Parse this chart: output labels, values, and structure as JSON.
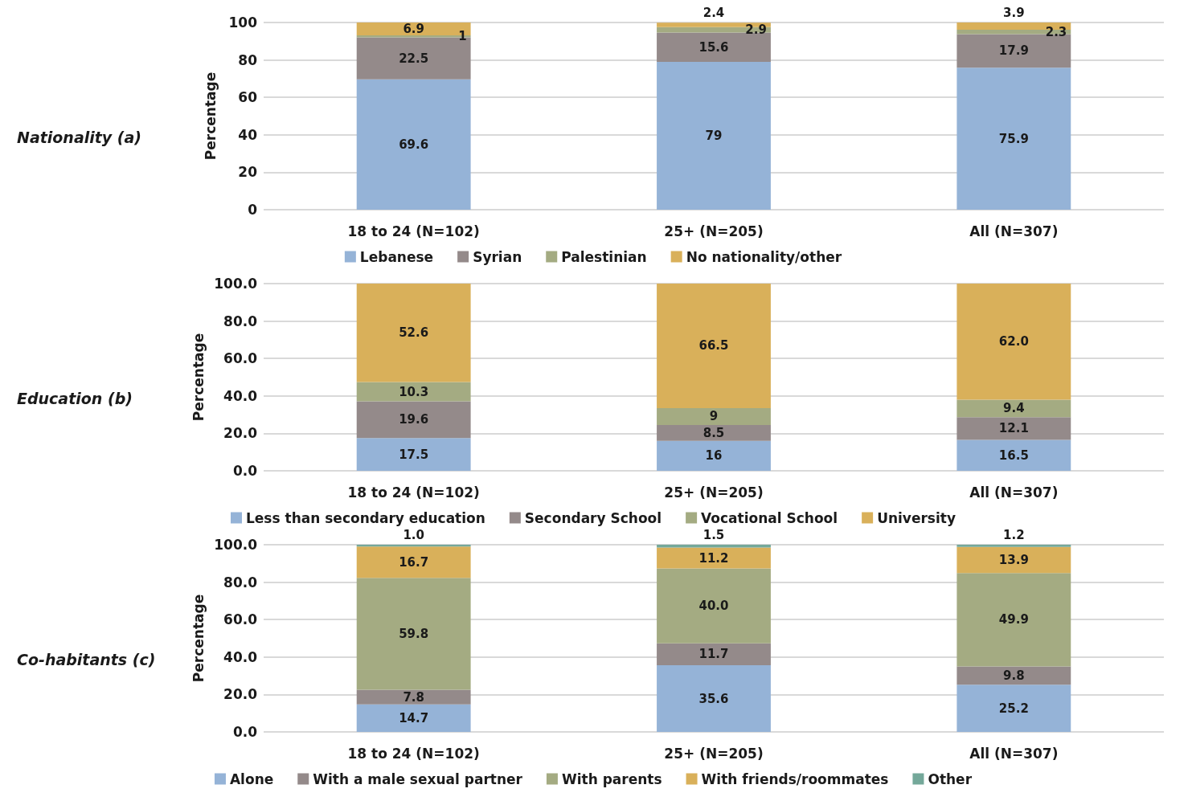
{
  "chart_data": [
    {
      "type": "bar",
      "title": "Nationality (a)",
      "ylabel": "Percentage",
      "categories": [
        "18 to 24 (N=102)",
        "25+ (N=205)",
        "All (N=307)"
      ],
      "stacked": true,
      "ylim": [
        0,
        100
      ],
      "yticks": [
        0,
        20,
        40,
        60,
        80,
        100
      ],
      "grid": "y",
      "legend": "bottom",
      "series": [
        {
          "name": "Lebanese",
          "color": "#95b3d7",
          "values": [
            69.6,
            79,
            75.9
          ],
          "value_labels": [
            "69.6",
            "79",
            "75.9"
          ]
        },
        {
          "name": "Syrian",
          "color": "#948a8a",
          "values": [
            22.5,
            15.6,
            17.9
          ],
          "value_labels": [
            "22.5",
            "15.6",
            "17.9"
          ]
        },
        {
          "name": "Palestinian",
          "color": "#a4ab82",
          "values": [
            1,
            2.9,
            2.3
          ],
          "value_labels": [
            "1",
            "2.9",
            "2.3"
          ]
        },
        {
          "name": "No nationality/other",
          "color": "#d9b05a",
          "values": [
            6.9,
            2.4,
            3.9
          ],
          "value_labels": [
            "6.9",
            "2.4",
            "3.9"
          ]
        }
      ]
    },
    {
      "type": "bar",
      "title": "Education (b)",
      "ylabel": "Percentage",
      "categories": [
        "18 to 24 (N=102)",
        "25+ (N=205)",
        "All (N=307)"
      ],
      "stacked": true,
      "ylim": [
        0,
        100
      ],
      "yticks": [
        {
          "value": 0,
          "label": "0.0"
        },
        {
          "value": 20,
          "label": "20.0"
        },
        {
          "value": 40,
          "label": "40.0"
        },
        {
          "value": 60,
          "label": "60.0"
        },
        {
          "value": 80,
          "label": "80.0"
        },
        {
          "value": 100,
          "label": "100.0"
        }
      ],
      "grid": "y",
      "legend": "bottom",
      "series": [
        {
          "name": "Less than secondary education",
          "color": "#95b3d7",
          "values": [
            17.5,
            16,
            16.5
          ],
          "value_labels": [
            "17.5",
            "16",
            "16.5"
          ]
        },
        {
          "name": "Secondary School",
          "color": "#948a8a",
          "values": [
            19.6,
            8.5,
            12.1
          ],
          "value_labels": [
            "19.6",
            "8.5",
            "12.1"
          ]
        },
        {
          "name": "Vocational School",
          "color": "#a4ab82",
          "values": [
            10.3,
            9,
            9.4
          ],
          "value_labels": [
            "10.3",
            "9",
            "9.4"
          ]
        },
        {
          "name": "University",
          "color": "#d9b05a",
          "values": [
            52.6,
            66.5,
            62.0
          ],
          "value_labels": [
            "52.6",
            "66.5",
            "62.0"
          ]
        }
      ]
    },
    {
      "type": "bar",
      "title": "Co-habitants (c)",
      "ylabel": "Percentage",
      "categories": [
        "18 to 24 (N=102)",
        "25+ (N=205)",
        "All (N=307)"
      ],
      "stacked": true,
      "ylim": [
        0,
        100
      ],
      "yticks": [
        {
          "value": 0,
          "label": "0.0"
        },
        {
          "value": 20,
          "label": "20.0"
        },
        {
          "value": 40,
          "label": "40.0"
        },
        {
          "value": 60,
          "label": "60.0"
        },
        {
          "value": 80,
          "label": "80.0"
        },
        {
          "value": 100,
          "label": "100.0"
        }
      ],
      "grid": "y",
      "legend": "bottom",
      "series": [
        {
          "name": "Alone",
          "color": "#95b3d7",
          "values": [
            14.7,
            35.6,
            25.2
          ],
          "value_labels": [
            "14.7",
            "35.6",
            "25.2"
          ]
        },
        {
          "name": "With a male sexual partner",
          "color": "#948a8a",
          "values": [
            7.8,
            11.7,
            9.8
          ],
          "value_labels": [
            "7.8",
            "11.7",
            "9.8"
          ]
        },
        {
          "name": "With parents",
          "color": "#a4ab82",
          "values": [
            59.8,
            40.0,
            49.9
          ],
          "value_labels": [
            "59.8",
            "40.0",
            "49.9"
          ]
        },
        {
          "name": "With friends/roommates",
          "color": "#d9b05a",
          "values": [
            16.7,
            11.2,
            13.9
          ],
          "value_labels": [
            "16.7",
            "11.2",
            "13.9"
          ]
        },
        {
          "name": "Other",
          "color": "#74a89a",
          "values": [
            1.0,
            1.5,
            1.2
          ],
          "value_labels": [
            "1.0",
            "1.5",
            "1.2"
          ]
        }
      ]
    }
  ]
}
